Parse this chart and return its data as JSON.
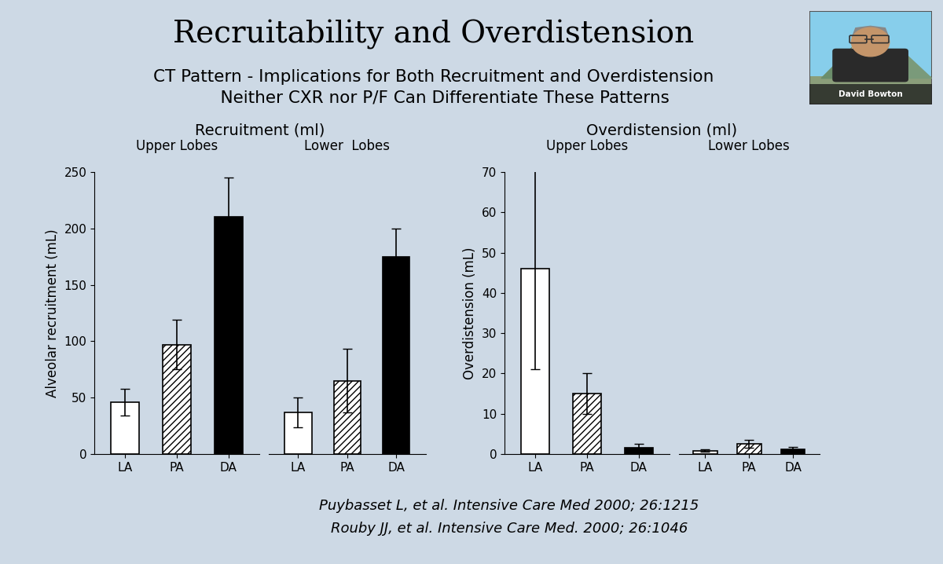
{
  "title": "Recruitability and Overdistension",
  "subtitle_line1": "CT Pattern - Implications for Both Recruitment and Overdistension",
  "subtitle_line2": "    Neither CXR nor P/F Can Differentiate These Patterns",
  "bg_color": "#cdd9e5",
  "recruit_title": "Recruitment (ml)",
  "recruit_ylabel": "Alveolar recruitment (mL)",
  "recruit_ylim": [
    0,
    250
  ],
  "recruit_yticks": [
    0,
    50,
    100,
    150,
    200,
    250
  ],
  "recruit_upper_label": "Upper Lobes",
  "recruit_lower_label": "Lower  Lobes",
  "recruit_upper_values": [
    46,
    97,
    210
  ],
  "recruit_upper_errors": [
    12,
    22,
    35
  ],
  "recruit_lower_values": [
    37,
    65,
    175
  ],
  "recruit_lower_errors": [
    13,
    28,
    25
  ],
  "over_title": "Overdistension (ml)",
  "over_ylabel": "Overdistension (mL)",
  "over_ylim": [
    0,
    70
  ],
  "over_yticks": [
    0,
    10,
    20,
    30,
    40,
    50,
    60,
    70
  ],
  "over_upper_label": "Upper Lobes",
  "over_lower_label": "Lower Lobes",
  "over_upper_values": [
    46,
    15,
    1.5
  ],
  "over_upper_errors": [
    25,
    5,
    1
  ],
  "over_lower_values": [
    0.8,
    2.5,
    1.2
  ],
  "over_lower_errors": [
    0.3,
    1.0,
    0.5
  ],
  "xlabels": [
    "LA",
    "PA",
    "DA"
  ],
  "color_LA": "white",
  "color_PA": "white",
  "color_DA": "black",
  "hatch_LA": "",
  "hatch_PA": "////",
  "hatch_DA": "",
  "edgecolor": "black",
  "ref1": "Puybasset L, et al. Intensive Care Med 2000; 26:1215",
  "ref2": "Rouby JJ, et al. Intensive Care Med. 2000; 26:1046",
  "title_fontsize": 28,
  "subtitle_fontsize": 15.5,
  "axis_label_fontsize": 12,
  "tick_fontsize": 11,
  "section_title_fontsize": 14,
  "lobe_label_fontsize": 12,
  "ref_fontsize": 13
}
